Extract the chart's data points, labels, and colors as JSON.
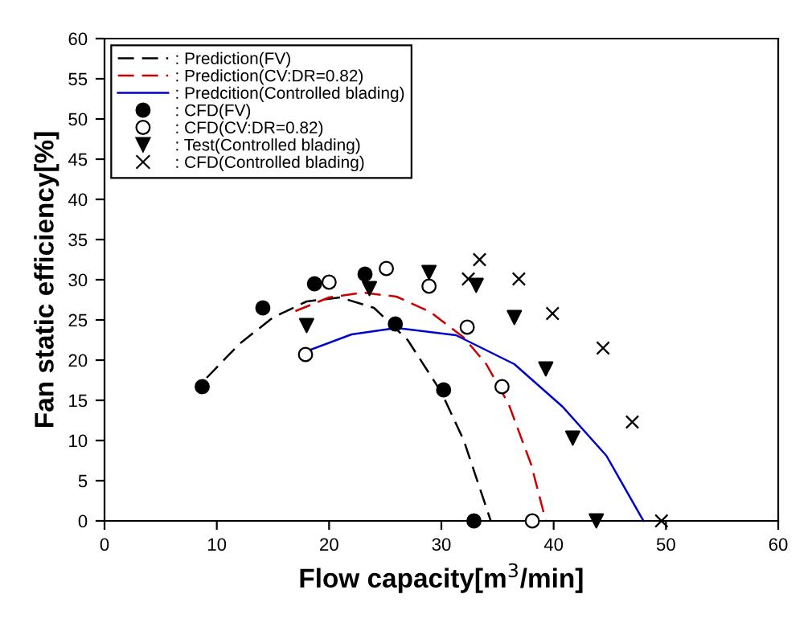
{
  "chart_data": {
    "type": "line",
    "xlabel": "Flow capacity[m$^{3}$/min]",
    "ylabel": "Fan static efficiency[%]",
    "xlim": [
      0,
      60
    ],
    "ylim": [
      0,
      60
    ],
    "xticks": [
      0,
      10,
      20,
      30,
      40,
      50,
      60
    ],
    "yticks": [
      0,
      5,
      10,
      15,
      20,
      25,
      30,
      35,
      40,
      45,
      50,
      55,
      60
    ],
    "grid": false,
    "legend": "top left",
    "series": [
      {
        "name": ": Prediction(FV)",
        "color": "#000000",
        "line_style": "dashed",
        "marker": "none",
        "x": [
          9.1,
          12,
          15,
          18,
          21,
          24,
          27,
          30,
          32,
          34.4
        ],
        "values": [
          17.8,
          22,
          25.3,
          27.3,
          27.8,
          26.5,
          22.5,
          16,
          10,
          0
        ]
      },
      {
        "name": ": Prediction(CV:DR=0.82)",
        "color": "#cc0000",
        "line_style": "dashed",
        "marker": "none",
        "x": [
          17,
          20,
          23,
          26,
          29,
          32,
          34,
          36,
          38,
          39.3
        ],
        "values": [
          26.1,
          27.8,
          28.4,
          27.9,
          26,
          22.8,
          19.5,
          14.5,
          7,
          0
        ]
      },
      {
        "name": ": Predcition(Controlled blading)",
        "color": "#0000cc",
        "line_style": "solid",
        "marker": "none",
        "x": [
          18,
          22,
          26,
          31.3,
          36.5,
          40.8,
          44.7,
          48
        ],
        "values": [
          21.1,
          23.2,
          24,
          23.1,
          19.5,
          14.2,
          8.1,
          0
        ]
      },
      {
        "name": ": CFD(FV)",
        "type": "scatter",
        "color": "#000000",
        "marker": "circle",
        "x": [
          8.7,
          14.1,
          18.7,
          23.2,
          25.9,
          30.2,
          32.9
        ],
        "values": [
          16.7,
          26.5,
          29.5,
          30.7,
          24.5,
          16.3,
          0
        ]
      },
      {
        "name": ": CFD(CV:DR=0.82)",
        "type": "scatter",
        "color": "#ffffff",
        "marker": "circle",
        "x": [
          17.9,
          20.0,
          25.1,
          28.9,
          32.3,
          35.4,
          38.1
        ],
        "values": [
          20.7,
          29.7,
          31.4,
          29.2,
          24.1,
          16.7,
          0
        ]
      },
      {
        "name": ": Test(Controlled blading)",
        "type": "scatter",
        "color": "#000000",
        "marker": "triangle",
        "x": [
          18.0,
          23.6,
          28.9,
          33.1,
          36.5,
          39.3,
          41.7,
          43.8
        ],
        "values": [
          24.3,
          28.9,
          30.9,
          29.3,
          25.3,
          18.9,
          10.3,
          0
        ]
      },
      {
        "name": ": CFD(Controlled blading)",
        "type": "scatter",
        "color": "#000000",
        "marker": "cross",
        "x": [
          33.4,
          32.4,
          36.9,
          39.9,
          44.4,
          47.0,
          49.6
        ],
        "values": [
          32.5,
          30.1,
          30.1,
          25.8,
          21.5,
          12.3,
          0
        ]
      }
    ]
  }
}
